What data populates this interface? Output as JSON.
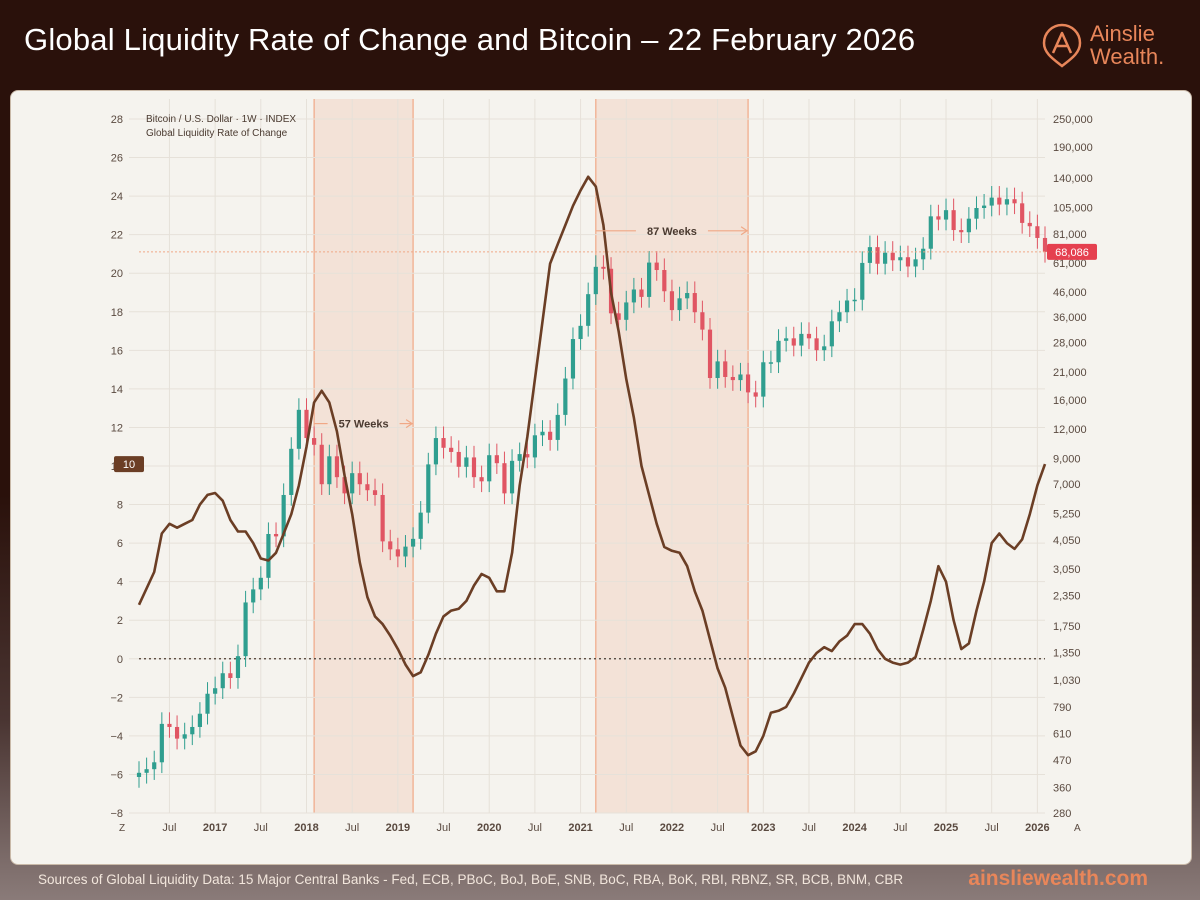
{
  "header": {
    "title": "Global Liquidity Rate of Change and Bitcoin – 22 February 2026"
  },
  "brand": {
    "line1": "Ainslie",
    "line2": "Wealth.",
    "color": "#e8865a",
    "icon": "a-logo-icon"
  },
  "footer": {
    "sources": "Sources of Global Liquidity Data: 15 Major Central Banks - Fed, ECB, PBoC, BoJ, BoE, SNB, BoC, RBA, BoK, RBI, RBNZ, SR, BCB, BNM, CBR",
    "site": "ainsliewealth.com"
  },
  "chart_data": {
    "type": "line",
    "legend": [
      "Bitcoin / U.S. Dollar · 1W · INDEX",
      "Global Liquidity Rate of Change"
    ],
    "left_axis": {
      "ticks": [
        "28",
        "26",
        "24",
        "22",
        "20",
        "18",
        "16",
        "14",
        "12",
        "10",
        "8",
        "6",
        "4",
        "2",
        "0",
        "−2",
        "−4",
        "−6",
        "−8"
      ],
      "range": [
        -8,
        28
      ]
    },
    "right_axis": {
      "ticks": [
        "250,000",
        "190,000",
        "140,000",
        "105,000",
        "81,000",
        "61,000",
        "46,000",
        "36,000",
        "28,000",
        "21,000",
        "16,000",
        "12,000",
        "9,000",
        "7,000",
        "5,250",
        "4,050",
        "3,050",
        "2,350",
        "1,750",
        "1,350",
        "1,030",
        "790",
        "610",
        "470",
        "360",
        "280"
      ],
      "scale": "log",
      "range": [
        280,
        250000
      ]
    },
    "x_axis": {
      "ticks": [
        "Jul",
        "2017",
        "Jul",
        "2018",
        "Jul",
        "2019",
        "Jul",
        "2020",
        "Jul",
        "2021",
        "Jul",
        "2022",
        "Jul",
        "2023",
        "Jul",
        "2024",
        "Jul",
        "2025",
        "Jul",
        "2026"
      ],
      "corner_left": "Z",
      "corner_right": "A",
      "range": [
        "2016-03",
        "2026-02"
      ]
    },
    "current_btc_label": "68,086",
    "current_roc_label": "10",
    "shaded_periods": [
      {
        "start": "2018-02",
        "end": "2019-03",
        "label": "57 Weeks"
      },
      {
        "start": "2021-03",
        "end": "2022-11",
        "label": "87 Weeks"
      }
    ],
    "series": [
      {
        "name": "Global Liquidity Rate of Change",
        "color": "#6b3e25",
        "points": [
          [
            "2016-03",
            2.8
          ],
          [
            "2016-05",
            4.5
          ],
          [
            "2016-06",
            6.5
          ],
          [
            "2016-07",
            7.0
          ],
          [
            "2016-08",
            6.8
          ],
          [
            "2016-09",
            7.0
          ],
          [
            "2016-10",
            7.2
          ],
          [
            "2016-11",
            8.0
          ],
          [
            "2016-12",
            8.5
          ],
          [
            "2017-01",
            8.6
          ],
          [
            "2017-02",
            8.2
          ],
          [
            "2017-03",
            7.2
          ],
          [
            "2017-04",
            6.6
          ],
          [
            "2017-05",
            6.6
          ],
          [
            "2017-06",
            6.0
          ],
          [
            "2017-07",
            5.2
          ],
          [
            "2017-08",
            5.1
          ],
          [
            "2017-09",
            5.5
          ],
          [
            "2017-10",
            6.5
          ],
          [
            "2017-11",
            7.5
          ],
          [
            "2017-12",
            9.0
          ],
          [
            "2018-01",
            11.0
          ],
          [
            "2018-02",
            13.3
          ],
          [
            "2018-03",
            13.9
          ],
          [
            "2018-04",
            13.3
          ],
          [
            "2018-05",
            11.8
          ],
          [
            "2018-06",
            9.5
          ],
          [
            "2018-07",
            7.5
          ],
          [
            "2018-08",
            5.0
          ],
          [
            "2018-09",
            3.2
          ],
          [
            "2018-10",
            2.2
          ],
          [
            "2018-11",
            1.8
          ],
          [
            "2018-12",
            1.2
          ],
          [
            "2019-01",
            0.5
          ],
          [
            "2019-02",
            -0.3
          ],
          [
            "2019-03",
            -0.9
          ],
          [
            "2019-04",
            -0.7
          ],
          [
            "2019-05",
            0.2
          ],
          [
            "2019-06",
            1.3
          ],
          [
            "2019-07",
            2.2
          ],
          [
            "2019-08",
            2.5
          ],
          [
            "2019-09",
            2.6
          ],
          [
            "2019-10",
            3.0
          ],
          [
            "2019-11",
            3.8
          ],
          [
            "2019-12",
            4.4
          ],
          [
            "2020-01",
            4.2
          ],
          [
            "2020-02",
            3.5
          ],
          [
            "2020-03",
            3.5
          ],
          [
            "2020-04",
            5.5
          ],
          [
            "2020-05",
            9.0
          ],
          [
            "2020-06",
            11.5
          ],
          [
            "2020-07",
            14.5
          ],
          [
            "2020-08",
            17.5
          ],
          [
            "2020-09",
            20.5
          ],
          [
            "2020-10",
            21.5
          ],
          [
            "2020-11",
            22.5
          ],
          [
            "2020-12",
            23.5
          ],
          [
            "2021-01",
            24.3
          ],
          [
            "2021-02",
            25.0
          ],
          [
            "2021-03",
            24.5
          ],
          [
            "2021-04",
            22.5
          ],
          [
            "2021-05",
            19.0
          ],
          [
            "2021-06",
            17.0
          ],
          [
            "2021-07",
            14.5
          ],
          [
            "2021-08",
            12.5
          ],
          [
            "2021-09",
            10.0
          ],
          [
            "2021-10",
            8.5
          ],
          [
            "2021-11",
            7.0
          ],
          [
            "2021-12",
            5.8
          ],
          [
            "2022-01",
            5.6
          ],
          [
            "2022-02",
            5.5
          ],
          [
            "2022-03",
            4.8
          ],
          [
            "2022-04",
            3.5
          ],
          [
            "2022-05",
            2.5
          ],
          [
            "2022-06",
            1.0
          ],
          [
            "2022-07",
            -0.5
          ],
          [
            "2022-08",
            -1.5
          ],
          [
            "2022-09",
            -3.0
          ],
          [
            "2022-10",
            -4.5
          ],
          [
            "2022-11",
            -5.0
          ],
          [
            "2022-12",
            -4.8
          ],
          [
            "2023-01",
            -4.0
          ],
          [
            "2023-02",
            -2.8
          ],
          [
            "2023-03",
            -2.7
          ],
          [
            "2023-04",
            -2.5
          ],
          [
            "2023-05",
            -1.8
          ],
          [
            "2023-06",
            -1.0
          ],
          [
            "2023-07",
            -0.2
          ],
          [
            "2023-08",
            0.3
          ],
          [
            "2023-09",
            0.6
          ],
          [
            "2023-10",
            0.4
          ],
          [
            "2023-11",
            0.9
          ],
          [
            "2023-12",
            1.2
          ],
          [
            "2024-01",
            1.8
          ],
          [
            "2024-02",
            1.8
          ],
          [
            "2024-03",
            1.3
          ],
          [
            "2024-04",
            0.5
          ],
          [
            "2024-05",
            0.0
          ],
          [
            "2024-06",
            -0.2
          ],
          [
            "2024-07",
            -0.3
          ],
          [
            "2024-08",
            -0.2
          ],
          [
            "2024-09",
            0.1
          ],
          [
            "2024-10",
            1.5
          ],
          [
            "2024-11",
            3.0
          ],
          [
            "2024-12",
            4.8
          ],
          [
            "2025-01",
            4.0
          ],
          [
            "2025-02",
            2.0
          ],
          [
            "2025-03",
            0.5
          ],
          [
            "2025-04",
            0.8
          ],
          [
            "2025-05",
            2.5
          ],
          [
            "2025-06",
            4.0
          ],
          [
            "2025-07",
            6.0
          ],
          [
            "2025-08",
            6.5
          ],
          [
            "2025-09",
            6.0
          ],
          [
            "2025-10",
            5.7
          ],
          [
            "2025-11",
            6.2
          ],
          [
            "2025-12",
            7.5
          ],
          [
            "2026-01",
            9.0
          ],
          [
            "2026-02",
            10.1
          ]
        ]
      },
      {
        "name": "Bitcoin / U.S. Dollar · 1W · INDEX",
        "up_color": "#2f9e8f",
        "down_color": "#e05563",
        "points": [
          [
            "2016-03",
            415
          ],
          [
            "2016-04",
            430
          ],
          [
            "2016-05",
            460
          ],
          [
            "2016-06",
            670
          ],
          [
            "2016-07",
            650
          ],
          [
            "2016-08",
            580
          ],
          [
            "2016-09",
            605
          ],
          [
            "2016-10",
            650
          ],
          [
            "2016-11",
            740
          ],
          [
            "2016-12",
            900
          ],
          [
            "2017-01",
            950
          ],
          [
            "2017-02",
            1100
          ],
          [
            "2017-03",
            1050
          ],
          [
            "2017-04",
            1300
          ],
          [
            "2017-05",
            2200
          ],
          [
            "2017-06",
            2500
          ],
          [
            "2017-07",
            2800
          ],
          [
            "2017-08",
            4300
          ],
          [
            "2017-09",
            4200
          ],
          [
            "2017-10",
            6300
          ],
          [
            "2017-11",
            9900
          ],
          [
            "2017-12",
            14500
          ],
          [
            "2018-01",
            11000
          ],
          [
            "2018-02",
            10300
          ],
          [
            "2018-03",
            7000
          ],
          [
            "2018-04",
            9200
          ],
          [
            "2018-05",
            7500
          ],
          [
            "2018-06",
            6400
          ],
          [
            "2018-07",
            7800
          ],
          [
            "2018-08",
            7000
          ],
          [
            "2018-09",
            6600
          ],
          [
            "2018-10",
            6300
          ],
          [
            "2018-11",
            4000
          ],
          [
            "2018-12",
            3700
          ],
          [
            "2019-01",
            3450
          ],
          [
            "2019-02",
            3800
          ],
          [
            "2019-03",
            4100
          ],
          [
            "2019-04",
            5300
          ],
          [
            "2019-05",
            8500
          ],
          [
            "2019-06",
            11000
          ],
          [
            "2019-07",
            10000
          ],
          [
            "2019-08",
            9600
          ],
          [
            "2019-09",
            8300
          ],
          [
            "2019-10",
            9100
          ],
          [
            "2019-11",
            7500
          ],
          [
            "2019-12",
            7200
          ],
          [
            "2020-01",
            9300
          ],
          [
            "2020-02",
            8600
          ],
          [
            "2020-03",
            6400
          ],
          [
            "2020-04",
            8800
          ],
          [
            "2020-05",
            9400
          ],
          [
            "2020-06",
            9100
          ],
          [
            "2020-07",
            11300
          ],
          [
            "2020-08",
            11700
          ],
          [
            "2020-09",
            10800
          ],
          [
            "2020-10",
            13800
          ],
          [
            "2020-11",
            19700
          ],
          [
            "2020-12",
            29000
          ],
          [
            "2021-01",
            33000
          ],
          [
            "2021-02",
            45000
          ],
          [
            "2021-03",
            58800
          ],
          [
            "2021-04",
            57700
          ],
          [
            "2021-05",
            37300
          ],
          [
            "2021-06",
            35000
          ],
          [
            "2021-07",
            41500
          ],
          [
            "2021-08",
            47100
          ],
          [
            "2021-09",
            43800
          ],
          [
            "2021-10",
            61300
          ],
          [
            "2021-11",
            57000
          ],
          [
            "2021-12",
            46300
          ],
          [
            "2022-01",
            38500
          ],
          [
            "2022-02",
            43200
          ],
          [
            "2022-03",
            45500
          ],
          [
            "2022-04",
            37700
          ],
          [
            "2022-05",
            31800
          ],
          [
            "2022-06",
            19800
          ],
          [
            "2022-07",
            23300
          ],
          [
            "2022-08",
            20000
          ],
          [
            "2022-09",
            19400
          ],
          [
            "2022-10",
            20500
          ],
          [
            "2022-11",
            17200
          ],
          [
            "2022-12",
            16500
          ],
          [
            "2023-01",
            23100
          ],
          [
            "2023-02",
            23100
          ],
          [
            "2023-03",
            28500
          ],
          [
            "2023-04",
            29200
          ],
          [
            "2023-05",
            27200
          ],
          [
            "2023-06",
            30500
          ],
          [
            "2023-07",
            29200
          ],
          [
            "2023-08",
            26000
          ],
          [
            "2023-09",
            27000
          ],
          [
            "2023-10",
            34500
          ],
          [
            "2023-11",
            37700
          ],
          [
            "2023-12",
            42300
          ],
          [
            "2024-01",
            42600
          ],
          [
            "2024-02",
            61100
          ],
          [
            "2024-03",
            71300
          ],
          [
            "2024-04",
            60600
          ],
          [
            "2024-05",
            67500
          ],
          [
            "2024-06",
            62700
          ],
          [
            "2024-07",
            64600
          ],
          [
            "2024-08",
            59000
          ],
          [
            "2024-09",
            63300
          ],
          [
            "2024-10",
            70200
          ],
          [
            "2024-11",
            96400
          ],
          [
            "2024-12",
            93400
          ],
          [
            "2025-01",
            102400
          ],
          [
            "2025-02",
            84300
          ],
          [
            "2025-03",
            82500
          ],
          [
            "2025-04",
            94200
          ],
          [
            "2025-05",
            104600
          ],
          [
            "2025-06",
            107100
          ],
          [
            "2025-07",
            115800
          ],
          [
            "2025-08",
            108200
          ],
          [
            "2025-09",
            114000
          ],
          [
            "2025-10",
            109500
          ],
          [
            "2025-11",
            90400
          ],
          [
            "2025-12",
            87500
          ],
          [
            "2026-01",
            78000
          ],
          [
            "2026-02",
            68086
          ]
        ]
      }
    ]
  }
}
